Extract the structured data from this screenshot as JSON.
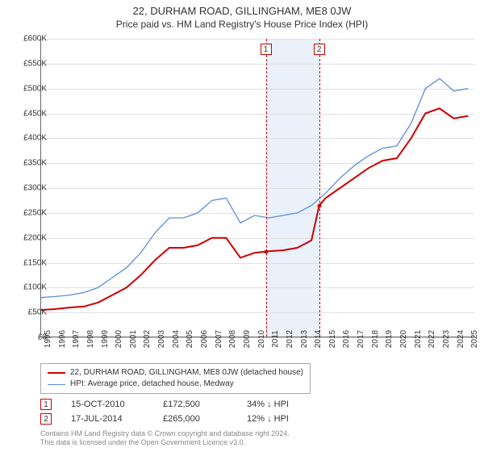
{
  "title": "22, DURHAM ROAD, GILLINGHAM, ME8 0JW",
  "subtitle": "Price paid vs. HM Land Registry's House Price Index (HPI)",
  "chart": {
    "type": "line",
    "x_years": [
      1995,
      1996,
      1997,
      1998,
      1999,
      2000,
      2001,
      2002,
      2003,
      2004,
      2005,
      2006,
      2007,
      2008,
      2009,
      2010,
      2011,
      2012,
      2013,
      2014,
      2015,
      2016,
      2017,
      2018,
      2019,
      2020,
      2021,
      2022,
      2023,
      2024,
      2025
    ],
    "ylim": [
      0,
      600000
    ],
    "ytick_step": 50000,
    "ylabels": [
      "£0",
      "£50K",
      "£100K",
      "£150K",
      "£200K",
      "£250K",
      "£300K",
      "£350K",
      "£400K",
      "£450K",
      "£500K",
      "£550K",
      "£600K"
    ],
    "grid_color": "#e0e0e0",
    "background_color": "#ffffff",
    "series": {
      "property": {
        "color": "#cc0000",
        "line_width": 2,
        "label": "22, DURHAM ROAD, GILLINGHAM, ME8 0JW (detached house)",
        "x": [
          1995,
          1996,
          1997,
          1998,
          1999,
          2000,
          2001,
          2002,
          2003,
          2004,
          2005,
          2006,
          2007,
          2008,
          2009,
          2010,
          2010.79,
          2011,
          2012,
          2013,
          2014,
          2014.54,
          2015,
          2016,
          2017,
          2018,
          2019,
          2020,
          2021,
          2022,
          2023,
          2024,
          2025
        ],
        "y": [
          55000,
          57000,
          60000,
          62000,
          70000,
          85000,
          100000,
          125000,
          155000,
          180000,
          180000,
          185000,
          200000,
          200000,
          160000,
          170000,
          172500,
          173000,
          175000,
          180000,
          195000,
          265000,
          280000,
          300000,
          320000,
          340000,
          355000,
          360000,
          400000,
          450000,
          460000,
          440000,
          445000
        ]
      },
      "hpi": {
        "color": "#5b8fd6",
        "line_width": 1.3,
        "label": "HPI: Average price, detached house, Medway",
        "x": [
          1995,
          1996,
          1997,
          1998,
          1999,
          2000,
          2001,
          2002,
          2003,
          2004,
          2005,
          2006,
          2007,
          2008,
          2009,
          2010,
          2011,
          2012,
          2013,
          2014,
          2015,
          2016,
          2017,
          2018,
          2019,
          2020,
          2021,
          2022,
          2023,
          2024,
          2025
        ],
        "y": [
          80000,
          82000,
          85000,
          90000,
          100000,
          120000,
          140000,
          170000,
          210000,
          240000,
          240000,
          250000,
          275000,
          280000,
          230000,
          245000,
          240000,
          245000,
          250000,
          265000,
          290000,
          320000,
          345000,
          365000,
          380000,
          385000,
          430000,
          500000,
          520000,
          495000,
          500000
        ]
      }
    },
    "markers": [
      {
        "n": "1",
        "x_year": 2010.79,
        "price": 172500
      },
      {
        "n": "2",
        "x_year": 2014.54,
        "price": 265000
      }
    ],
    "shaded_region": {
      "x0_year": 2010.79,
      "x1_year": 2014.54,
      "color": "#eaf1fa"
    }
  },
  "transactions": [
    {
      "n": "1",
      "date": "15-OCT-2010",
      "price": "£172,500",
      "delta": "34% ↓ HPI"
    },
    {
      "n": "2",
      "date": "17-JUL-2014",
      "price": "£265,000",
      "delta": "12% ↓ HPI"
    }
  ],
  "footnote_line1": "Contains HM Land Registry data © Crown copyright and database right 2024.",
  "footnote_line2": "This data is licensed under the Open Government Licence v3.0."
}
